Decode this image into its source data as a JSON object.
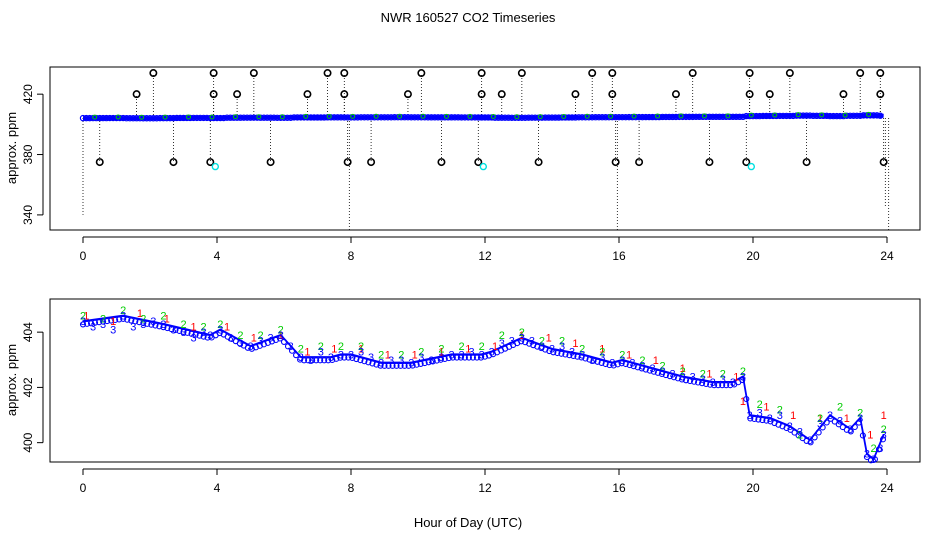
{
  "figure": {
    "title": "NWR  160527  CO2 Timeseries",
    "xlabel": "Hour of Day (UTC)"
  },
  "colors": {
    "blue": "#0000ff",
    "green": "#00cc00",
    "red": "#ff0000",
    "cyan": "#00e0e0",
    "black": "#000000"
  },
  "chart_data": [
    {
      "type": "scatter",
      "panel": "top",
      "ylabel": "approx. ppm",
      "xlim": [
        -0.5,
        24.5
      ],
      "ylim": [
        330,
        438
      ],
      "xticks": [
        0,
        4,
        8,
        12,
        16,
        20,
        24
      ],
      "yticks": [
        340,
        380,
        420
      ],
      "grid": false,
      "series": [
        {
          "marker": "circle",
          "color": "blue",
          "x": [
            0,
            0.5,
            1,
            1.5,
            2,
            2.5,
            3,
            3.5,
            4,
            4.5,
            5,
            5.5,
            6,
            6.5,
            7,
            7.5,
            8,
            8.5,
            9,
            9.5,
            10,
            10.5,
            11,
            11.5,
            12,
            12.5,
            13,
            13.5,
            14,
            14.5,
            15,
            15.5,
            16,
            16.5,
            17,
            17.5,
            18,
            18.5,
            19,
            19.5,
            20,
            20.5,
            21,
            21.5,
            22,
            22.5,
            23,
            23.5,
            23.9
          ],
          "y": [
            404.4,
            404.3,
            404.2,
            404.5,
            404.6,
            404.4,
            404.1,
            404.0,
            404.2,
            403.7,
            403.6,
            403.7,
            403.8,
            403.2,
            403.3,
            403.1,
            403.2,
            403.0,
            403.0,
            402.9,
            403.0,
            403.1,
            403.1,
            403.2,
            403.3,
            403.7,
            403.8,
            403.6,
            403.5,
            403.3,
            403.0,
            402.9,
            402.8,
            402.7,
            402.6,
            402.4,
            402.3,
            402.2,
            402.2,
            402.2,
            401.0,
            400.8,
            400.7,
            400.2,
            400.6,
            401.0,
            400.5,
            399.8,
            400.4
          ]
        }
      ],
      "outliers": [
        {
          "x": 0.5,
          "y": 375
        },
        {
          "x": 1.6,
          "y": 420
        },
        {
          "x": 2.1,
          "y": 434
        },
        {
          "x": 2.7,
          "y": 375
        },
        {
          "x": 3.8,
          "y": 375
        },
        {
          "x": 3.9,
          "y": 420
        },
        {
          "x": 3.9,
          "y": 434
        },
        {
          "x": 4.6,
          "y": 420
        },
        {
          "x": 5.1,
          "y": 434
        },
        {
          "x": 5.6,
          "y": 375
        },
        {
          "x": 6.7,
          "y": 420
        },
        {
          "x": 7.3,
          "y": 434
        },
        {
          "x": 7.8,
          "y": 434
        },
        {
          "x": 7.8,
          "y": 420
        },
        {
          "x": 7.9,
          "y": 375
        },
        {
          "x": 8.6,
          "y": 375
        },
        {
          "x": 9.7,
          "y": 420
        },
        {
          "x": 10.1,
          "y": 434
        },
        {
          "x": 10.7,
          "y": 375
        },
        {
          "x": 11.8,
          "y": 375
        },
        {
          "x": 11.9,
          "y": 420
        },
        {
          "x": 11.9,
          "y": 434
        },
        {
          "x": 12.5,
          "y": 420
        },
        {
          "x": 13.1,
          "y": 434
        },
        {
          "x": 13.6,
          "y": 375
        },
        {
          "x": 14.7,
          "y": 420
        },
        {
          "x": 15.2,
          "y": 434
        },
        {
          "x": 15.8,
          "y": 434
        },
        {
          "x": 15.8,
          "y": 420
        },
        {
          "x": 15.9,
          "y": 375
        },
        {
          "x": 16.6,
          "y": 375
        },
        {
          "x": 17.7,
          "y": 420
        },
        {
          "x": 18.2,
          "y": 434
        },
        {
          "x": 18.7,
          "y": 375
        },
        {
          "x": 19.8,
          "y": 375
        },
        {
          "x": 19.9,
          "y": 420
        },
        {
          "x": 19.9,
          "y": 434
        },
        {
          "x": 20.5,
          "y": 420
        },
        {
          "x": 21.1,
          "y": 434
        },
        {
          "x": 21.6,
          "y": 375
        },
        {
          "x": 22.7,
          "y": 420
        },
        {
          "x": 23.2,
          "y": 434
        },
        {
          "x": 23.8,
          "y": 434
        },
        {
          "x": 23.8,
          "y": 420
        },
        {
          "x": 23.9,
          "y": 375
        }
      ],
      "cyan_points": [
        {
          "x": 3.95,
          "y": 372
        },
        {
          "x": 11.95,
          "y": 372
        },
        {
          "x": 19.95,
          "y": 372
        }
      ],
      "drops": [
        {
          "x": 0.0,
          "y": 340
        },
        {
          "x": 7.95,
          "y": 330
        },
        {
          "x": 15.95,
          "y": 330
        },
        {
          "x": 23.95,
          "y": 345
        },
        {
          "x": 24.05,
          "y": 330
        }
      ]
    },
    {
      "type": "line",
      "panel": "bottom",
      "ylabel": "approx. ppm",
      "xlim": [
        -0.5,
        24.5
      ],
      "ylim": [
        399.3,
        405.2
      ],
      "xticks": [
        0,
        4,
        8,
        12,
        16,
        20,
        24
      ],
      "yticks": [
        400,
        402,
        404
      ],
      "grid": false,
      "series": [
        {
          "marker": "3",
          "color": "blue",
          "x": [
            0,
            0.3,
            0.6,
            0.9,
            1.2,
            1.5,
            1.8,
            2.1,
            2.4,
            2.7,
            3.0,
            3.3,
            3.6,
            3.8,
            4.1,
            4.4,
            4.7,
            5.0,
            5.3,
            5.6,
            5.9,
            6.2,
            6.5,
            6.8,
            7.1,
            7.4,
            7.7,
            8.0,
            8.3,
            8.6,
            8.9,
            9.2,
            9.5,
            9.8,
            10.1,
            10.4,
            10.7,
            11.0,
            11.3,
            11.6,
            11.9,
            12.2,
            12.5,
            12.8,
            13.1,
            13.4,
            13.7,
            14.0,
            14.3,
            14.6,
            14.9,
            15.2,
            15.5,
            15.8,
            16.1,
            16.4,
            16.7,
            17.0,
            17.3,
            17.6,
            17.9,
            18.2,
            18.5,
            18.8,
            19.1,
            19.4,
            19.7,
            19.9,
            20.2,
            20.5,
            20.8,
            21.1,
            21.4,
            21.7,
            22.0,
            22.3,
            22.6,
            22.9,
            23.2,
            23.4,
            23.6,
            23.8,
            23.9
          ],
          "y": [
            404.4,
            404.2,
            404.3,
            404.1,
            404.6,
            404.2,
            404.3,
            404.4,
            404.3,
            404.1,
            404.0,
            403.8,
            404.0,
            403.9,
            404.1,
            403.8,
            403.6,
            403.5,
            403.7,
            403.8,
            403.9,
            403.5,
            403.1,
            403.0,
            403.3,
            403.1,
            403.2,
            403.2,
            403.3,
            403.1,
            402.9,
            403.0,
            403.0,
            402.9,
            403.1,
            403.0,
            403.1,
            403.2,
            403.2,
            403.3,
            403.2,
            403.3,
            403.6,
            403.7,
            403.8,
            403.7,
            403.5,
            403.4,
            403.5,
            403.3,
            403.2,
            403.0,
            403.1,
            402.9,
            403.0,
            402.9,
            402.8,
            402.7,
            402.6,
            402.5,
            402.4,
            402.4,
            402.3,
            402.2,
            402.3,
            402.2,
            402.4,
            401.0,
            401.1,
            400.9,
            401.0,
            400.6,
            400.4,
            400.1,
            400.7,
            401.0,
            400.8,
            400.5,
            400.9,
            399.6,
            399.4,
            399.8,
            400.3
          ]
        },
        {
          "marker": "2",
          "color": "green",
          "x": [
            0,
            0.6,
            1.2,
            1.8,
            2.4,
            3.0,
            3.6,
            4.1,
            4.7,
            5.3,
            5.9,
            6.5,
            7.1,
            7.7,
            8.3,
            8.9,
            9.5,
            10.1,
            10.7,
            11.3,
            11.9,
            12.5,
            13.1,
            13.7,
            14.3,
            14.9,
            15.5,
            16.1,
            16.7,
            17.3,
            17.9,
            18.5,
            19.1,
            19.7,
            20.2,
            20.8,
            21.4,
            22.0,
            22.6,
            23.2,
            23.6,
            23.9
          ],
          "y": [
            404.6,
            404.5,
            404.8,
            404.5,
            404.6,
            404.3,
            404.2,
            404.3,
            403.9,
            403.9,
            404.1,
            403.4,
            403.5,
            403.5,
            403.5,
            403.2,
            403.2,
            403.3,
            403.4,
            403.5,
            403.5,
            403.9,
            404.0,
            403.7,
            403.7,
            403.4,
            403.3,
            403.2,
            403.0,
            402.8,
            402.6,
            402.5,
            402.5,
            402.6,
            401.4,
            401.2,
            400.3,
            400.9,
            401.3,
            401.1,
            399.8,
            400.5
          ]
        },
        {
          "marker": "1",
          "color": "red",
          "x": [
            0.1,
            0.9,
            1.7,
            2.5,
            3.3,
            4.3,
            5.1,
            5.9,
            6.7,
            7.5,
            8.3,
            9.1,
            9.9,
            10.7,
            11.5,
            12.3,
            13.1,
            13.9,
            14.7,
            15.5,
            16.3,
            17.1,
            17.9,
            18.7,
            19.5,
            19.7,
            20.4,
            21.2,
            22.0,
            22.8,
            23.5,
            23.9
          ],
          "y": [
            404.6,
            404.4,
            404.7,
            404.5,
            404.2,
            404.2,
            403.8,
            403.9,
            403.3,
            403.4,
            403.4,
            403.2,
            403.2,
            403.3,
            403.4,
            403.5,
            403.9,
            403.8,
            403.6,
            403.4,
            403.2,
            403.0,
            402.7,
            402.5,
            402.4,
            401.5,
            401.3,
            401.0,
            400.9,
            400.9,
            400.3,
            401.0
          ]
        }
      ],
      "line_points": {
        "x": [
          0,
          1.2,
          2.4,
          3.8,
          4.1,
          5.0,
          5.9,
          6.5,
          7.4,
          7.7,
          8.0,
          8.9,
          9.8,
          11.0,
          11.9,
          12.2,
          13.1,
          14.0,
          14.9,
          15.8,
          16.1,
          17.0,
          17.9,
          18.8,
          19.4,
          19.7,
          19.9,
          20.5,
          21.1,
          21.7,
          22.3,
          22.9,
          23.2,
          23.4,
          23.6,
          23.9
        ],
        "y": [
          404.4,
          404.6,
          404.3,
          403.9,
          404.1,
          403.5,
          403.9,
          403.1,
          403.1,
          403.2,
          403.2,
          402.9,
          402.9,
          403.2,
          403.2,
          403.3,
          403.8,
          403.4,
          403.2,
          402.9,
          403.0,
          402.7,
          402.4,
          402.2,
          402.2,
          402.4,
          401.0,
          400.9,
          400.6,
          400.1,
          401.0,
          400.5,
          400.9,
          399.6,
          399.4,
          400.3
        ]
      }
    }
  ]
}
